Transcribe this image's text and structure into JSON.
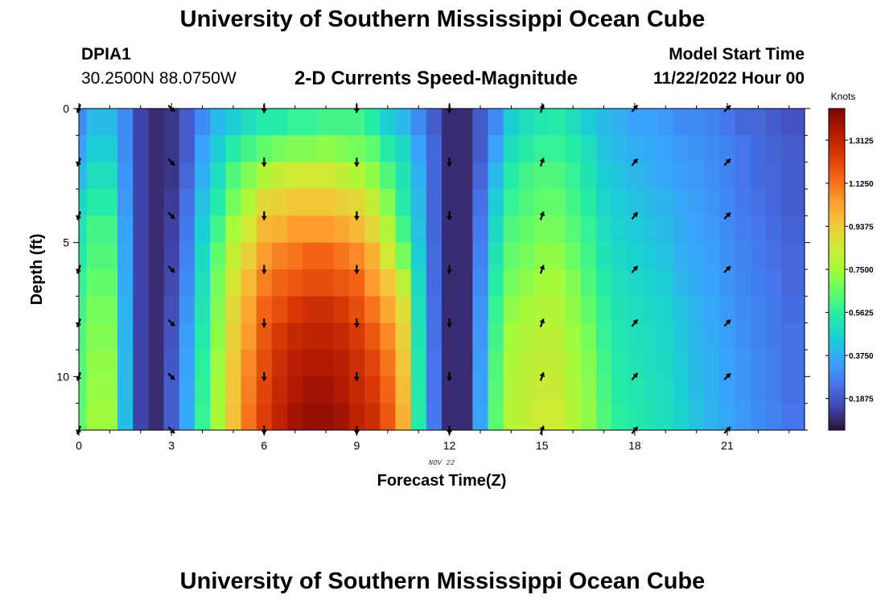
{
  "header": {
    "title": "University of Southern Mississippi Ocean Cube",
    "station_id": "DPIA1",
    "station_coords": "30.2500N  88.0750W",
    "chart_title": "2-D Currents Speed-Magnitude",
    "model_start_label": "Model Start Time",
    "model_start_value": "11/22/2022 Hour 00"
  },
  "footer": {
    "title": "University of Southern Mississippi Ocean Cube"
  },
  "chart_data": {
    "type": "heatmap",
    "title": "2-D Currents Speed-Magnitude",
    "xlabel": "Forecast Time(Z)",
    "ylabel": "Depth (ft)",
    "x_date_label": "NOV 22",
    "xlim": [
      0,
      23.5
    ],
    "ylim": [
      0,
      12
    ],
    "y_inverted": true,
    "x_ticks": [
      0,
      3,
      6,
      9,
      12,
      15,
      18,
      21
    ],
    "y_ticks": [
      0,
      5,
      10
    ],
    "colorbar": {
      "label": "Knots",
      "min": 0.05,
      "max": 1.45,
      "ticks": [
        "0.1875",
        "0.3750",
        "0.5625",
        "0.7500",
        "0.9375",
        "1.1250",
        "1.3125"
      ],
      "colors": [
        "#30123b",
        "#4145ab",
        "#4675ed",
        "#39a2fc",
        "#1bcfd4",
        "#24eca6",
        "#61fc6c",
        "#a4fc3b",
        "#d1e834",
        "#f3c63a",
        "#fe9b2d",
        "#f36315",
        "#d93806",
        "#b11901",
        "#7a0403"
      ]
    },
    "x_hours": [
      0,
      0.5,
      1,
      1.5,
      2,
      2.5,
      3,
      3.5,
      4,
      4.5,
      5,
      5.5,
      6,
      6.5,
      7,
      7.5,
      8,
      8.5,
      9,
      9.5,
      10,
      10.5,
      11,
      11.5,
      12,
      12.5,
      13,
      13.5,
      14,
      14.5,
      15,
      15.5,
      16,
      16.5,
      17,
      17.5,
      18,
      18.5,
      19,
      19.5,
      20,
      20.5,
      21,
      21.5,
      22,
      22.5,
      23
    ],
    "depth_ft": [
      0.5,
      1.5,
      2.5,
      3.5,
      4.5,
      5.5,
      6.5,
      7.5,
      8.5,
      9.5,
      10.5,
      11.5
    ],
    "speed_knots": [
      [
        0.3,
        0.4,
        0.4,
        0.3,
        0.15,
        0.1,
        0.12,
        0.2,
        0.3,
        0.4,
        0.45,
        0.5,
        0.55,
        0.55,
        0.58,
        0.58,
        0.6,
        0.6,
        0.6,
        0.55,
        0.45,
        0.4,
        0.3,
        0.2,
        0.1,
        0.1,
        0.2,
        0.3,
        0.45,
        0.5,
        0.53,
        0.55,
        0.5,
        0.45,
        0.4,
        0.38,
        0.35,
        0.35,
        0.33,
        0.3,
        0.3,
        0.28,
        0.25,
        0.22,
        0.22,
        0.2,
        0.18
      ],
      [
        0.35,
        0.45,
        0.45,
        0.3,
        0.15,
        0.1,
        0.12,
        0.2,
        0.35,
        0.45,
        0.55,
        0.6,
        0.65,
        0.68,
        0.7,
        0.7,
        0.72,
        0.7,
        0.68,
        0.65,
        0.55,
        0.48,
        0.35,
        0.22,
        0.1,
        0.1,
        0.2,
        0.35,
        0.5,
        0.55,
        0.58,
        0.58,
        0.55,
        0.5,
        0.43,
        0.4,
        0.38,
        0.37,
        0.35,
        0.33,
        0.32,
        0.3,
        0.28,
        0.25,
        0.23,
        0.21,
        0.2
      ],
      [
        0.4,
        0.5,
        0.5,
        0.32,
        0.15,
        0.1,
        0.12,
        0.22,
        0.38,
        0.5,
        0.62,
        0.7,
        0.78,
        0.82,
        0.85,
        0.85,
        0.85,
        0.82,
        0.78,
        0.72,
        0.62,
        0.52,
        0.38,
        0.22,
        0.1,
        0.1,
        0.22,
        0.4,
        0.55,
        0.6,
        0.62,
        0.62,
        0.58,
        0.52,
        0.45,
        0.42,
        0.4,
        0.38,
        0.36,
        0.34,
        0.33,
        0.31,
        0.28,
        0.25,
        0.23,
        0.22,
        0.2
      ],
      [
        0.48,
        0.55,
        0.55,
        0.33,
        0.15,
        0.1,
        0.13,
        0.24,
        0.42,
        0.55,
        0.68,
        0.78,
        0.9,
        0.92,
        0.95,
        0.95,
        0.95,
        0.92,
        0.9,
        0.82,
        0.7,
        0.55,
        0.4,
        0.22,
        0.1,
        0.1,
        0.24,
        0.45,
        0.58,
        0.62,
        0.65,
        0.65,
        0.6,
        0.55,
        0.47,
        0.44,
        0.42,
        0.4,
        0.38,
        0.36,
        0.34,
        0.32,
        0.29,
        0.26,
        0.24,
        0.22,
        0.2
      ],
      [
        0.52,
        0.6,
        0.6,
        0.35,
        0.15,
        0.1,
        0.14,
        0.26,
        0.45,
        0.6,
        0.75,
        0.85,
        0.98,
        1.0,
        1.05,
        1.05,
        1.05,
        1.02,
        0.98,
        0.9,
        0.78,
        0.6,
        0.42,
        0.22,
        0.1,
        0.1,
        0.26,
        0.48,
        0.62,
        0.65,
        0.68,
        0.68,
        0.63,
        0.58,
        0.5,
        0.46,
        0.44,
        0.42,
        0.4,
        0.37,
        0.35,
        0.33,
        0.3,
        0.27,
        0.25,
        0.23,
        0.21
      ],
      [
        0.55,
        0.62,
        0.62,
        0.36,
        0.15,
        0.1,
        0.15,
        0.28,
        0.48,
        0.65,
        0.82,
        0.92,
        1.05,
        1.1,
        1.12,
        1.15,
        1.15,
        1.12,
        1.08,
        1.0,
        0.85,
        0.68,
        0.45,
        0.23,
        0.1,
        0.1,
        0.28,
        0.52,
        0.65,
        0.68,
        0.72,
        0.72,
        0.66,
        0.6,
        0.52,
        0.48,
        0.46,
        0.44,
        0.42,
        0.38,
        0.36,
        0.34,
        0.31,
        0.28,
        0.26,
        0.24,
        0.22
      ],
      [
        0.58,
        0.65,
        0.65,
        0.37,
        0.15,
        0.1,
        0.16,
        0.3,
        0.5,
        0.68,
        0.86,
        0.98,
        1.1,
        1.15,
        1.18,
        1.2,
        1.2,
        1.18,
        1.15,
        1.05,
        0.95,
        0.8,
        0.48,
        0.23,
        0.1,
        0.1,
        0.3,
        0.55,
        0.68,
        0.72,
        0.75,
        0.75,
        0.7,
        0.62,
        0.55,
        0.5,
        0.48,
        0.46,
        0.44,
        0.4,
        0.37,
        0.35,
        0.32,
        0.29,
        0.27,
        0.25,
        0.22
      ],
      [
        0.6,
        0.68,
        0.68,
        0.38,
        0.15,
        0.1,
        0.17,
        0.32,
        0.52,
        0.7,
        0.9,
        1.02,
        1.15,
        1.2,
        1.25,
        1.28,
        1.28,
        1.25,
        1.2,
        1.12,
        1.02,
        0.88,
        0.5,
        0.24,
        0.1,
        0.1,
        0.32,
        0.58,
        0.72,
        0.75,
        0.78,
        0.78,
        0.72,
        0.65,
        0.57,
        0.52,
        0.5,
        0.48,
        0.46,
        0.42,
        0.38,
        0.36,
        0.33,
        0.3,
        0.28,
        0.26,
        0.23
      ],
      [
        0.62,
        0.7,
        0.7,
        0.39,
        0.15,
        0.1,
        0.18,
        0.34,
        0.54,
        0.72,
        0.92,
        1.05,
        1.18,
        1.25,
        1.3,
        1.32,
        1.32,
        1.3,
        1.25,
        1.18,
        1.08,
        0.92,
        0.52,
        0.24,
        0.1,
        0.1,
        0.33,
        0.6,
        0.75,
        0.78,
        0.8,
        0.8,
        0.74,
        0.68,
        0.58,
        0.53,
        0.51,
        0.49,
        0.47,
        0.43,
        0.39,
        0.37,
        0.34,
        0.31,
        0.28,
        0.26,
        0.24
      ],
      [
        0.63,
        0.72,
        0.72,
        0.4,
        0.15,
        0.1,
        0.19,
        0.35,
        0.56,
        0.74,
        0.94,
        1.08,
        1.2,
        1.28,
        1.33,
        1.35,
        1.35,
        1.33,
        1.28,
        1.22,
        1.12,
        0.95,
        0.53,
        0.25,
        0.1,
        0.1,
        0.34,
        0.62,
        0.77,
        0.8,
        0.82,
        0.82,
        0.76,
        0.7,
        0.6,
        0.54,
        0.52,
        0.5,
        0.48,
        0.44,
        0.4,
        0.38,
        0.35,
        0.32,
        0.29,
        0.27,
        0.24
      ],
      [
        0.64,
        0.73,
        0.73,
        0.4,
        0.15,
        0.1,
        0.2,
        0.36,
        0.57,
        0.75,
        0.95,
        1.1,
        1.22,
        1.3,
        1.35,
        1.38,
        1.38,
        1.35,
        1.3,
        1.25,
        1.15,
        0.97,
        0.54,
        0.25,
        0.1,
        0.1,
        0.35,
        0.63,
        0.78,
        0.81,
        0.83,
        0.83,
        0.77,
        0.71,
        0.61,
        0.55,
        0.53,
        0.51,
        0.49,
        0.45,
        0.41,
        0.38,
        0.35,
        0.32,
        0.29,
        0.27,
        0.24
      ],
      [
        0.65,
        0.74,
        0.74,
        0.41,
        0.15,
        0.1,
        0.2,
        0.37,
        0.58,
        0.76,
        0.96,
        1.12,
        1.24,
        1.32,
        1.38,
        1.4,
        1.4,
        1.38,
        1.32,
        1.28,
        1.18,
        1.0,
        0.55,
        0.26,
        0.1,
        0.1,
        0.36,
        0.64,
        0.79,
        0.82,
        0.84,
        0.84,
        0.78,
        0.72,
        0.62,
        0.56,
        0.54,
        0.52,
        0.5,
        0.46,
        0.42,
        0.39,
        0.36,
        0.33,
        0.3,
        0.28,
        0.25
      ]
    ],
    "vectors": {
      "hours": [
        0,
        3,
        6,
        9,
        12,
        15,
        18,
        21
      ],
      "depths_ft": [
        0,
        2,
        4,
        6,
        8,
        10,
        12
      ],
      "directions_deg": [
        200,
        135,
        180,
        180,
        180,
        20,
        40,
        45
      ]
    }
  }
}
